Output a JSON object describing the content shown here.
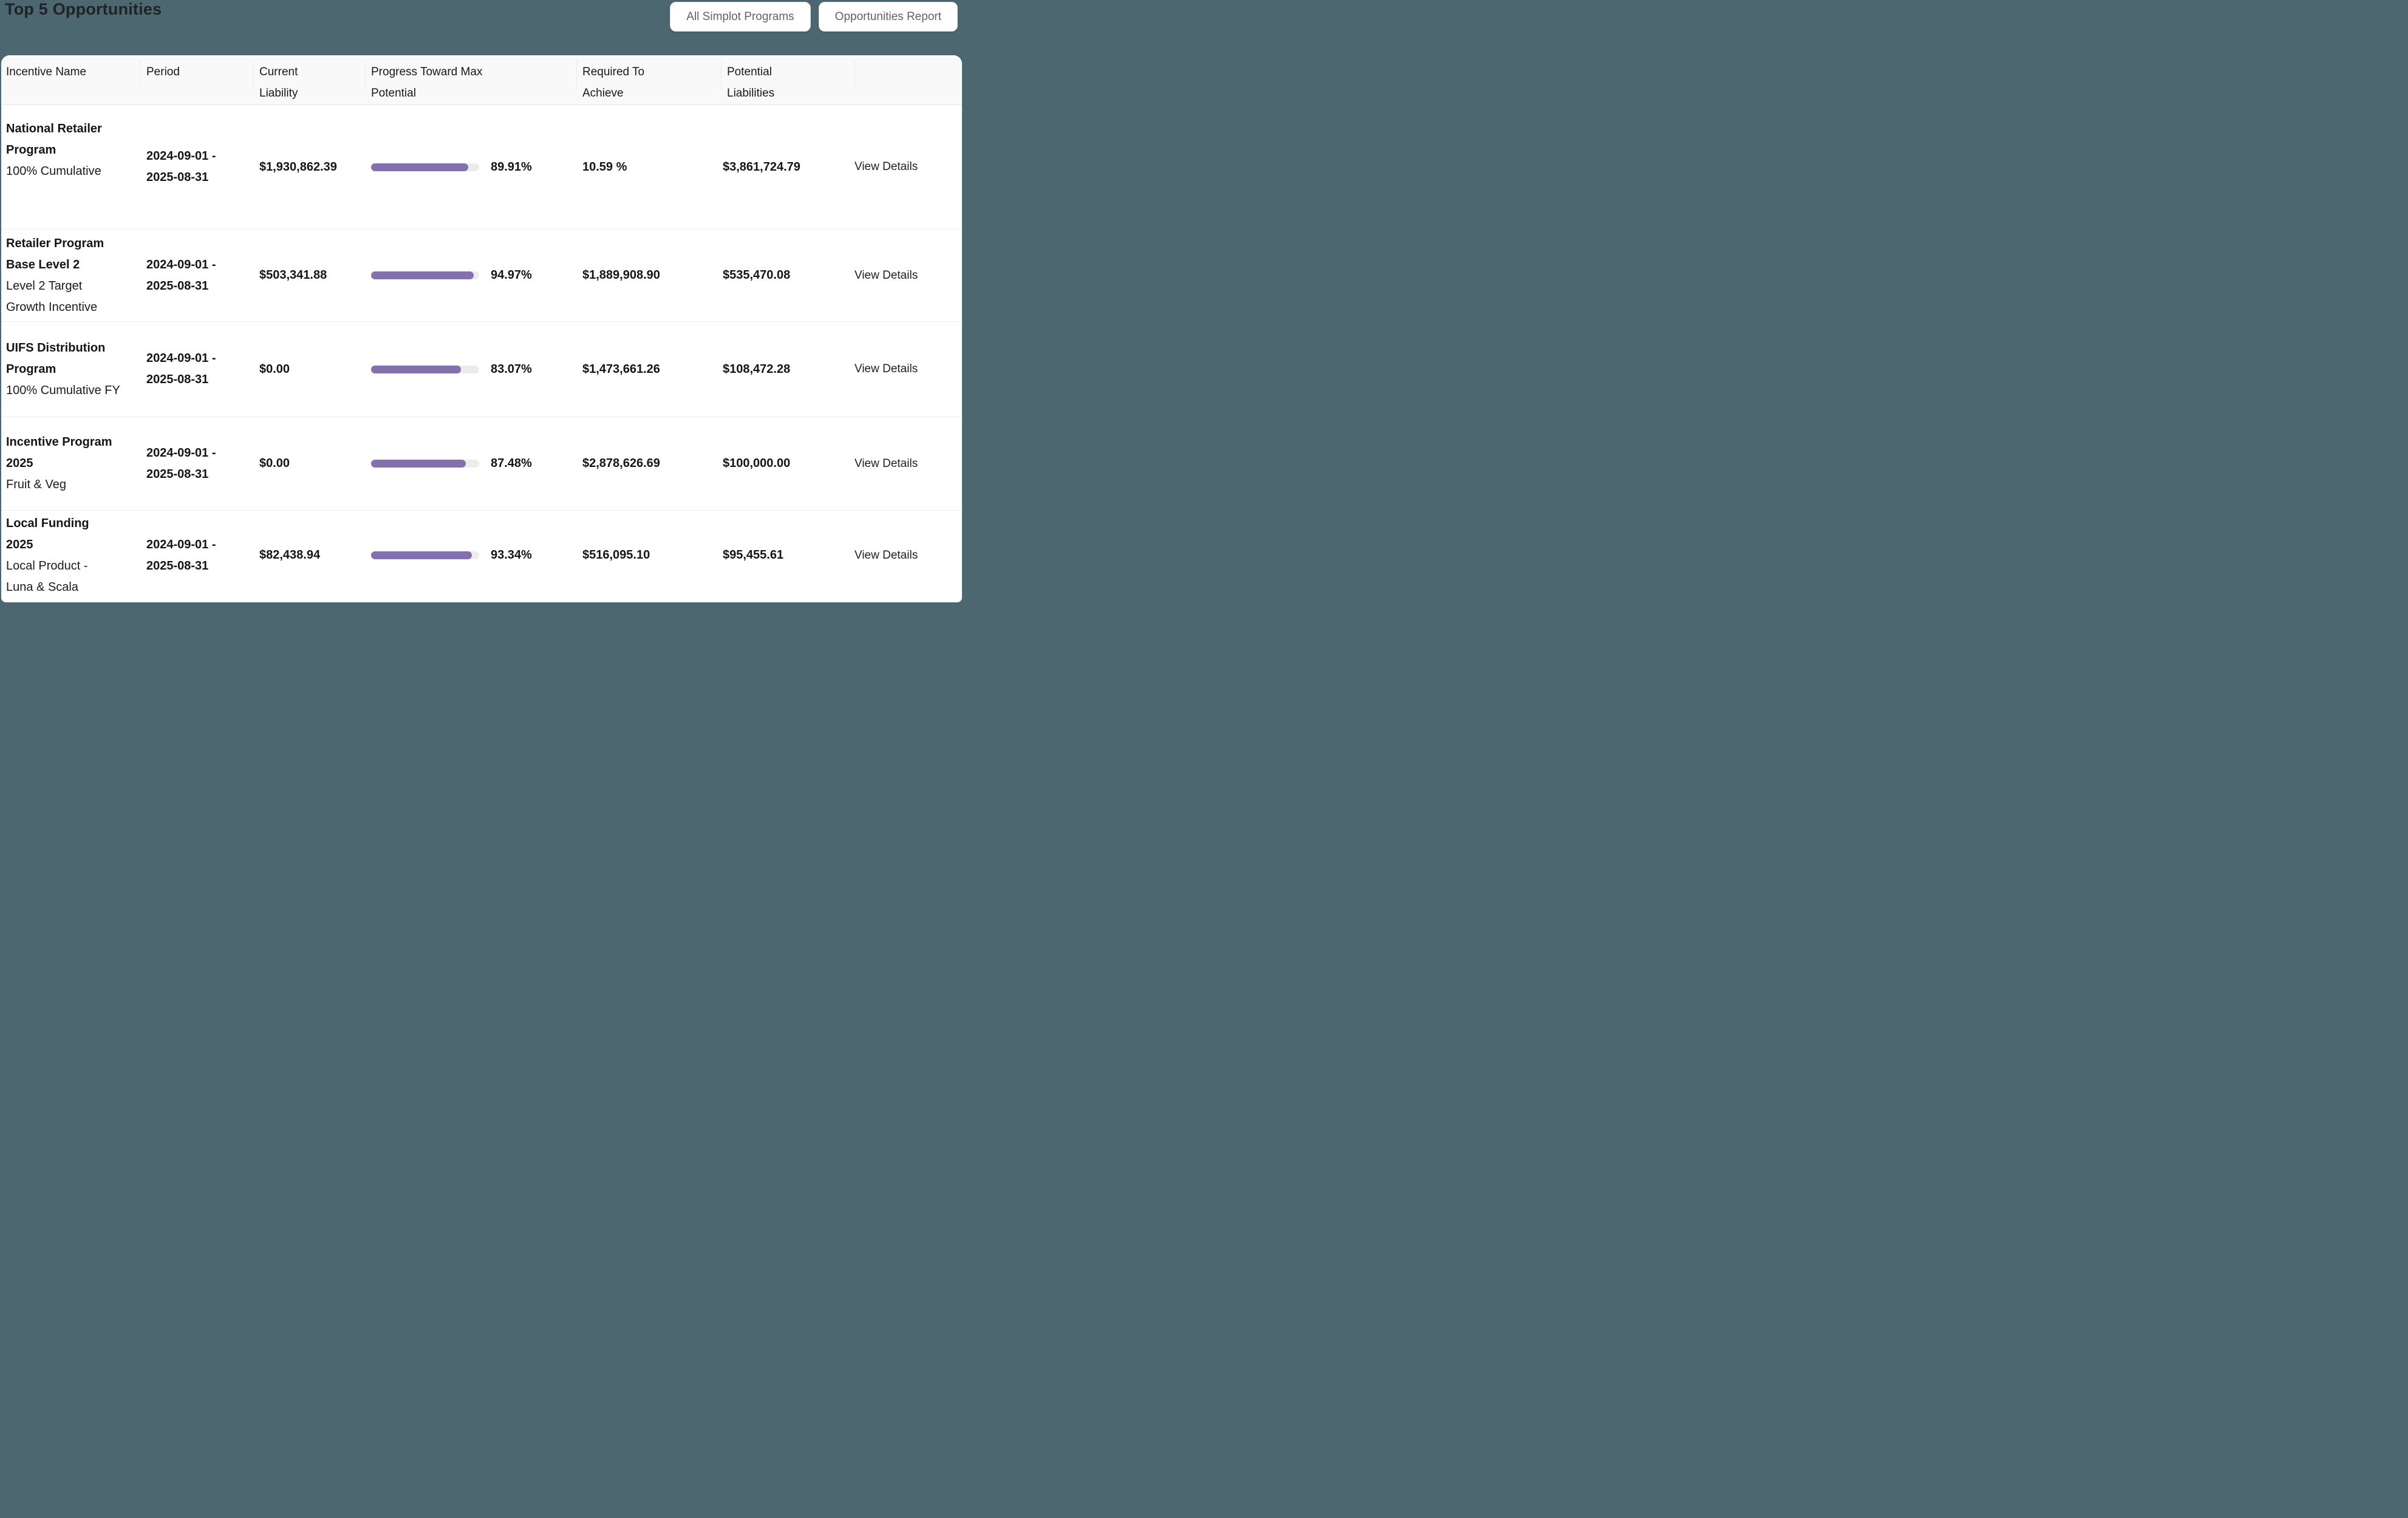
{
  "page": {
    "title": "Top 5 Opportunities"
  },
  "toolbar": {
    "all_programs_label": "All Simplot Programs",
    "report_label": "Opportunities Report"
  },
  "colors": {
    "background_teal": "#4d6770",
    "card_bg": "#ffffff",
    "header_bg": "#f9f9fa",
    "progress_fill": "#8570ae",
    "progress_track": "#ececed"
  },
  "table": {
    "columns": [
      "Incentive Name",
      "Period",
      "Current\nLiability",
      "Progress Toward Max\nPotential",
      "Required To\nAchieve",
      "Potential\nLiabilities"
    ],
    "rows": [
      {
        "name": "National Retailer\nProgram",
        "subtitle": "100% Cumulative",
        "period": "2024-09-01 -\n2025-08-31",
        "current_liability": "$1,930,862.39",
        "progress_pct": 89.91,
        "progress_label": "89.91%",
        "required_to_achieve": "10.59 %",
        "potential_liabilities": "$3,861,724.79",
        "action": "View Details"
      },
      {
        "name": "Retailer Program\nBase Level 2",
        "subtitle": "Level 2 Target\nGrowth Incentive",
        "period": "2024-09-01 -\n2025-08-31",
        "current_liability": "$503,341.88",
        "progress_pct": 94.97,
        "progress_label": "94.97%",
        "required_to_achieve": "$1,889,908.90",
        "potential_liabilities": "$535,470.08",
        "action": "View Details"
      },
      {
        "name": "UIFS Distribution\nProgram",
        "subtitle": "100% Cumulative FY",
        "period": "2024-09-01 -\n2025-08-31",
        "current_liability": "$0.00",
        "progress_pct": 83.07,
        "progress_label": "83.07%",
        "required_to_achieve": "$1,473,661.26",
        "potential_liabilities": "$108,472.28",
        "action": "View Details"
      },
      {
        "name": "Incentive Program\n2025",
        "subtitle": "Fruit & Veg",
        "period": "2024-09-01 -\n2025-08-31",
        "current_liability": "$0.00",
        "progress_pct": 87.48,
        "progress_label": "87.48%",
        "required_to_achieve": "$2,878,626.69",
        "potential_liabilities": "$100,000.00",
        "action": "View Details"
      },
      {
        "name": "Local Funding\n2025",
        "subtitle": "Local Product -\nLuna & Scala",
        "period": "2024-09-01 -\n2025-08-31",
        "current_liability": "$82,438.94",
        "progress_pct": 93.34,
        "progress_label": "93.34%",
        "required_to_achieve": "$516,095.10",
        "potential_liabilities": "$95,455.61",
        "action": "View Details"
      }
    ]
  }
}
